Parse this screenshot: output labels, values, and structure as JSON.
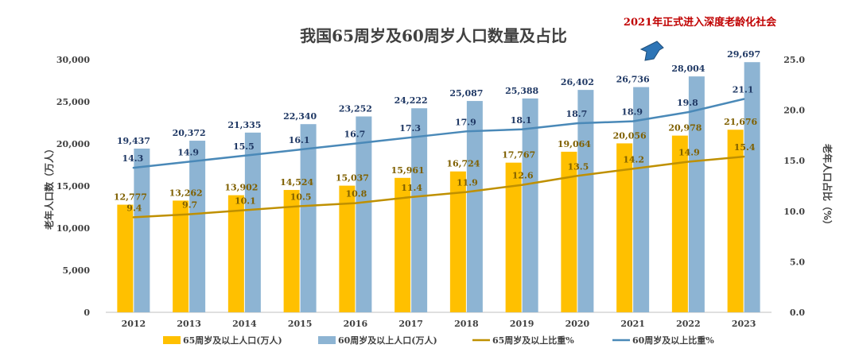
{
  "chart_data": {
    "type": "bar",
    "title": "我国65周岁及60周岁人口数量及占比",
    "annotation": "2021年正式进入深度老龄化社会",
    "categories": [
      "2012",
      "2013",
      "2014",
      "2015",
      "2016",
      "2017",
      "2018",
      "2019",
      "2020",
      "2021",
      "2022",
      "2023"
    ],
    "series": [
      {
        "name": "65周岁及以上人口(万人)",
        "type": "bar",
        "axis": "left",
        "color": "#ffc000",
        "values": [
          12777,
          13262,
          13902,
          14524,
          15037,
          15961,
          16724,
          17767,
          19064,
          20056,
          20978,
          21676
        ],
        "labels": [
          "12,777",
          "13,262",
          "13,902",
          "14,524",
          "15,037",
          "15,961",
          "16,724",
          "17,767",
          "19,064",
          "20,056",
          "20,978",
          "21,676"
        ]
      },
      {
        "name": "60周岁及以上人口(万人)",
        "type": "bar",
        "axis": "left",
        "color": "#8db4d3",
        "values": [
          19437,
          20372,
          21335,
          22340,
          23252,
          24222,
          25087,
          25388,
          26402,
          26736,
          28004,
          29697
        ],
        "labels": [
          "19,437",
          "20,372",
          "21,335",
          "22,340",
          "23,252",
          "24,222",
          "25,087",
          "25,388",
          "26,402",
          "26,736",
          "28,004",
          "29,697"
        ]
      },
      {
        "name": "65周岁及以上比重%",
        "type": "line",
        "axis": "right",
        "color": "#bf9000",
        "values": [
          9.4,
          9.7,
          10.1,
          10.5,
          10.8,
          11.4,
          11.9,
          12.6,
          13.5,
          14.2,
          14.9,
          15.4
        ],
        "labels": [
          "9.4",
          "9.7",
          "10.1",
          "10.5",
          "10.8",
          "11.4",
          "11.9",
          "12.6",
          "13.5",
          "14.2",
          "14.9",
          "15.4"
        ]
      },
      {
        "name": "60周岁及以上比重%",
        "type": "line",
        "axis": "right",
        "color": "#4a89b8",
        "values": [
          14.3,
          14.9,
          15.5,
          16.1,
          16.7,
          17.3,
          17.9,
          18.1,
          18.7,
          18.9,
          19.8,
          21.1
        ],
        "labels": [
          "14.3",
          "14.9",
          "15.5",
          "16.1",
          "16.7",
          "17.3",
          "17.9",
          "18.1",
          "18.7",
          "18.9",
          "19.8",
          "21.1"
        ]
      }
    ],
    "ylabel": "老年人口数（万人）",
    "ylim": [
      0,
      30000
    ],
    "yticks": [
      0,
      5000,
      10000,
      15000,
      20000,
      25000,
      30000
    ],
    "ytick_labels": [
      "0",
      "5,000",
      "10,000",
      "15,000",
      "20,000",
      "25,000",
      "30,000"
    ],
    "y2label": "老年人口占比（%）",
    "y2lim": [
      0,
      25
    ],
    "y2ticks": [
      0,
      5,
      10,
      15,
      20,
      25
    ],
    "y2tick_labels": [
      "0.0",
      "5.0",
      "10.0",
      "15.0",
      "20.0",
      "25.0"
    ],
    "legend": "bottom",
    "grid": false
  }
}
